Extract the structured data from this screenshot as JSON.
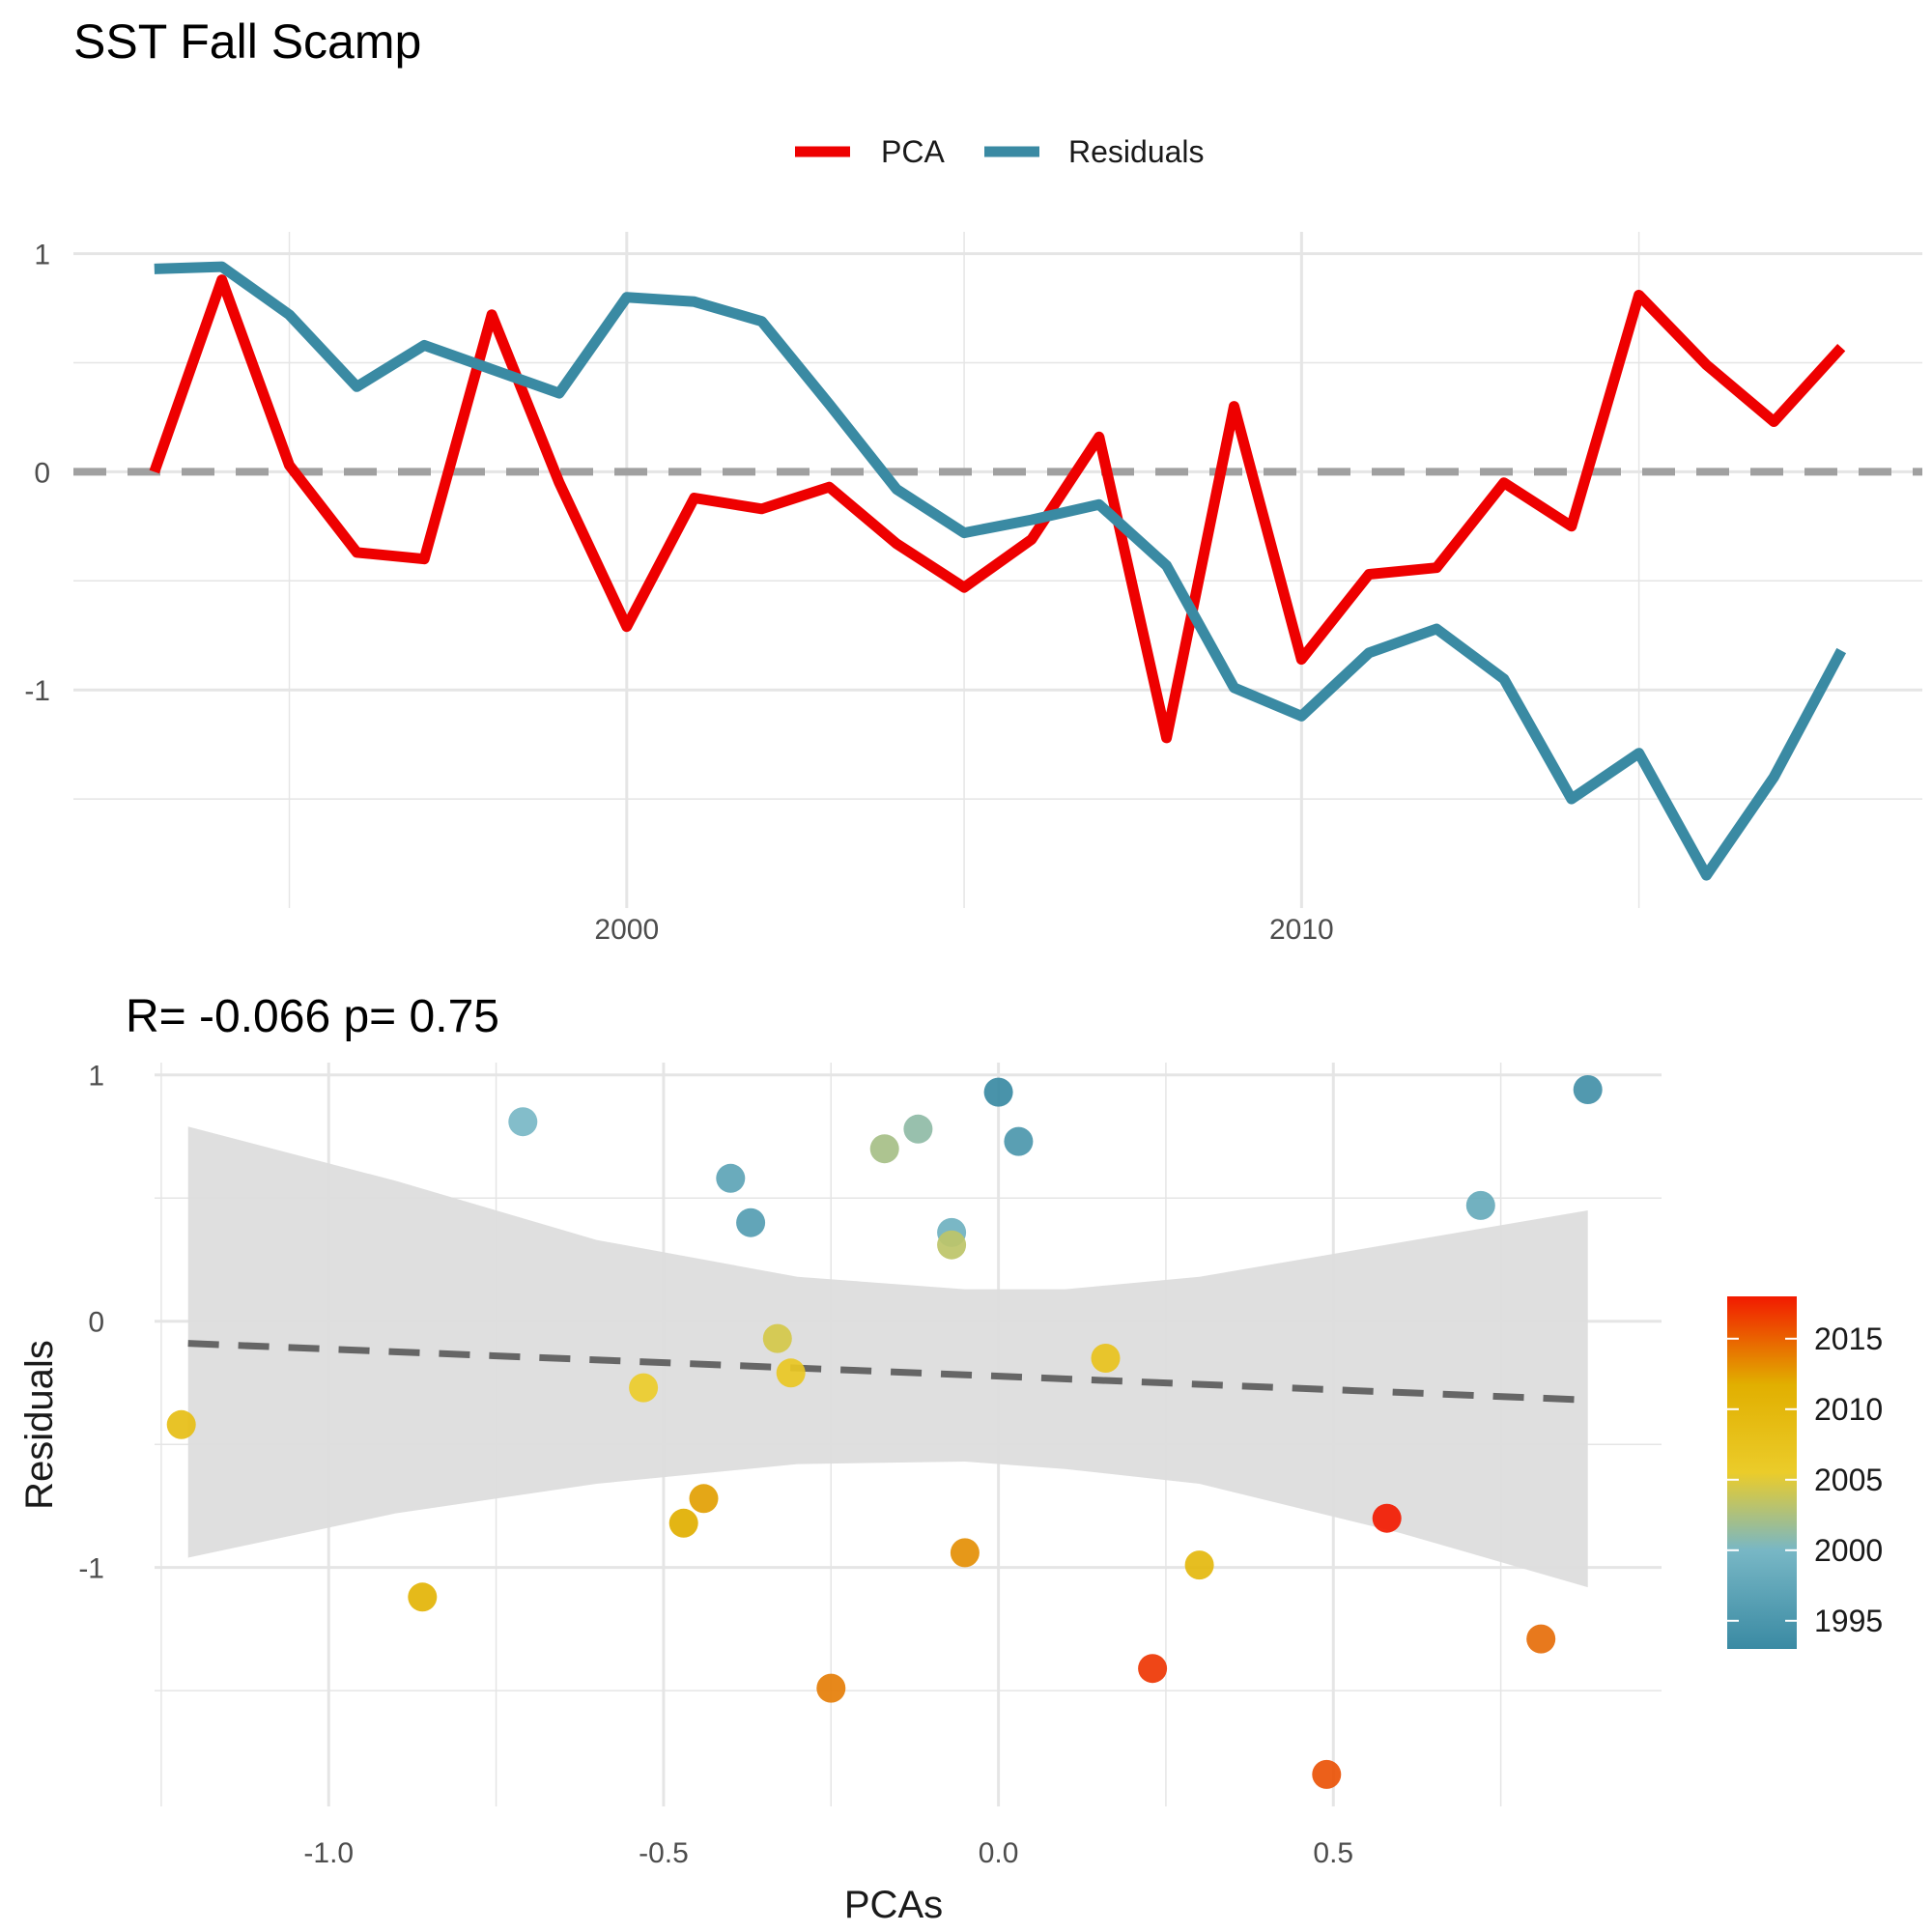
{
  "title": "SST Fall Scamp",
  "colors": {
    "pca": "#EE0000",
    "residuals": "#3A8AA3",
    "grid": "#E5E5E5",
    "zero_line": "#A0A0A0",
    "ribbon": "#DDDDDD",
    "fit_line": "#666666"
  },
  "chart_data": [
    {
      "type": "line",
      "title": "",
      "xlabel": "",
      "ylabel": "",
      "xlim": [
        1991.8,
        2019.2
      ],
      "ylim": [
        -2.0,
        1.1
      ],
      "x_ticks": [
        2000,
        2010
      ],
      "x_tick_labels": [
        "2000",
        "2010"
      ],
      "y_ticks": [
        1,
        0,
        -1
      ],
      "y_tick_labels": [
        "1",
        "0",
        "-1"
      ],
      "grid": true,
      "reference_line": 0,
      "legend_position": "top",
      "x": [
        1993,
        1994,
        1995,
        1996,
        1997,
        1998,
        1999,
        2000,
        2001,
        2002,
        2003,
        2004,
        2005,
        2006,
        2007,
        2008,
        2009,
        2010,
        2011,
        2012,
        2013,
        2014,
        2015,
        2016,
        2017,
        2018
      ],
      "series": [
        {
          "name": "PCA",
          "values": [
            0.0,
            0.88,
            0.03,
            -0.37,
            -0.4,
            0.72,
            -0.05,
            -0.71,
            -0.12,
            -0.17,
            -0.07,
            -0.33,
            -0.53,
            -0.31,
            0.16,
            -1.22,
            0.3,
            -0.86,
            -0.47,
            -0.44,
            -0.05,
            -0.25,
            0.81,
            0.49,
            0.23,
            0.57
          ]
        },
        {
          "name": "Residuals",
          "values": [
            0.93,
            0.94,
            0.72,
            0.39,
            0.58,
            0.47,
            0.36,
            0.8,
            0.78,
            0.69,
            0.31,
            -0.08,
            -0.28,
            -0.22,
            -0.15,
            -0.43,
            -0.99,
            -1.12,
            -0.83,
            -0.72,
            -0.95,
            -1.5,
            -1.29,
            -1.85,
            -1.4,
            -0.82
          ]
        }
      ]
    },
    {
      "type": "scatter",
      "title": "R= -0.066  p= 0.75",
      "xlabel": "PCAs",
      "ylabel": "Residuals",
      "xlim": [
        -1.26,
        0.99
      ],
      "ylim": [
        -1.97,
        1.05
      ],
      "x_ticks": [
        -1.0,
        -0.5,
        0.0,
        0.5
      ],
      "x_tick_labels": [
        "-1.0",
        "-0.5",
        "0.0",
        "0.5"
      ],
      "y_ticks": [
        1,
        0,
        -1
      ],
      "y_tick_labels": [
        "1",
        "0",
        "-1"
      ],
      "grid": true,
      "fit_line": {
        "x": [
          -1.21,
          0.88
        ],
        "y": [
          -0.09,
          -0.32
        ]
      },
      "confidence_band": {
        "x": [
          -1.21,
          -0.9,
          -0.6,
          -0.3,
          -0.05,
          0.1,
          0.3,
          0.6,
          0.88
        ],
        "upper": [
          0.79,
          0.57,
          0.33,
          0.18,
          0.13,
          0.13,
          0.18,
          0.32,
          0.45
        ],
        "lower": [
          -0.96,
          -0.78,
          -0.66,
          -0.58,
          -0.57,
          -0.6,
          -0.66,
          -0.86,
          -1.08
        ]
      },
      "color_legend": {
        "position": "right",
        "min": 1993,
        "max": 2018,
        "ticks": [
          2015,
          2010,
          2005,
          2000,
          1995
        ],
        "tick_labels": [
          "2015",
          "2010",
          "2005",
          "2000",
          "1995"
        ]
      },
      "points": {
        "year": [
          1993,
          1994,
          1995,
          1996,
          1997,
          1998,
          1999,
          2000,
          2001,
          2002,
          2003,
          2004,
          2005,
          2006,
          2007,
          2008,
          2009,
          2010,
          2011,
          2012,
          2013,
          2014,
          2015,
          2016,
          2017,
          2018
        ],
        "x": [
          0.0,
          0.88,
          0.03,
          -0.37,
          -0.4,
          0.72,
          -0.07,
          -0.71,
          -0.12,
          -0.17,
          -0.07,
          -0.33,
          -0.53,
          -0.31,
          0.16,
          -1.22,
          0.3,
          -0.86,
          -0.47,
          -0.44,
          -0.05,
          -0.25,
          0.81,
          0.49,
          0.23,
          0.58
        ],
        "y": [
          0.93,
          0.94,
          0.73,
          0.4,
          0.58,
          0.47,
          0.36,
          0.81,
          0.78,
          0.7,
          0.31,
          -0.07,
          -0.27,
          -0.21,
          -0.15,
          -0.42,
          -0.99,
          -1.12,
          -0.82,
          -0.72,
          -0.94,
          -1.49,
          -1.29,
          -1.84,
          -1.41,
          -0.8
        ]
      }
    }
  ]
}
